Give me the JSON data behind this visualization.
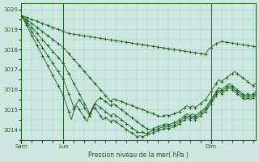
{
  "bg_color": "#cce8e0",
  "grid_color": "#aaccc4",
  "line_color": "#1a5c1a",
  "ylabel": "Pression niveau de la mer( hPa )",
  "ylim": [
    1013.5,
    1020.3
  ],
  "yticks": [
    1014,
    1015,
    1016,
    1017,
    1018,
    1019,
    1020
  ],
  "day_labels": [
    "Sam",
    "Lun",
    "Dim"
  ],
  "day_positions": [
    0,
    16,
    72
  ],
  "total_points": 90,
  "series": [
    [
      1019.7,
      1019.65,
      1019.6,
      1019.55,
      1019.5,
      1019.45,
      1019.4,
      1019.35,
      1019.3,
      1019.25,
      1019.2,
      1019.15,
      1019.1,
      1019.05,
      1019.0,
      1018.95,
      1018.9,
      1018.85,
      1018.8,
      1018.78,
      1018.76,
      1018.74,
      1018.72,
      1018.7,
      1018.68,
      1018.66,
      1018.64,
      1018.62,
      1018.6,
      1018.58,
      1018.56,
      1018.54,
      1018.52,
      1018.5,
      1018.48,
      1018.46,
      1018.44,
      1018.42,
      1018.4,
      1018.38,
      1018.36,
      1018.34,
      1018.32,
      1018.3,
      1018.28,
      1018.26,
      1018.24,
      1018.22,
      1018.2,
      1018.18,
      1018.16,
      1018.14,
      1018.12,
      1018.1,
      1018.08,
      1018.06,
      1018.04,
      1018.02,
      1018.0,
      1017.98,
      1017.96,
      1017.94,
      1017.92,
      1017.9,
      1017.88,
      1017.86,
      1017.84,
      1017.82,
      1017.8,
      1017.78,
      1017.76,
      1018.0,
      1018.1,
      1018.2,
      1018.3,
      1018.35,
      1018.4,
      1018.38,
      1018.36,
      1018.34,
      1018.32,
      1018.3,
      1018.28,
      1018.26,
      1018.24,
      1018.22,
      1018.2,
      1018.18,
      1018.16,
      1018.14
    ],
    [
      1019.7,
      1019.6,
      1019.5,
      1019.4,
      1019.3,
      1019.2,
      1019.1,
      1019.0,
      1018.9,
      1018.8,
      1018.7,
      1018.6,
      1018.5,
      1018.4,
      1018.3,
      1018.2,
      1018.1,
      1017.95,
      1017.8,
      1017.65,
      1017.5,
      1017.35,
      1017.2,
      1017.05,
      1016.9,
      1016.75,
      1016.6,
      1016.45,
      1016.3,
      1016.15,
      1016.0,
      1015.85,
      1015.7,
      1015.55,
      1015.4,
      1015.55,
      1015.5,
      1015.45,
      1015.4,
      1015.35,
      1015.3,
      1015.25,
      1015.2,
      1015.15,
      1015.1,
      1015.05,
      1015.0,
      1014.95,
      1014.9,
      1014.85,
      1014.8,
      1014.75,
      1014.7,
      1014.65,
      1014.7,
      1014.75,
      1014.7,
      1014.75,
      1014.8,
      1014.85,
      1014.9,
      1015.0,
      1015.1,
      1015.2,
      1015.1,
      1015.2,
      1015.1,
      1015.2,
      1015.3,
      1015.4,
      1015.5,
      1015.7,
      1015.9,
      1016.1,
      1016.3,
      1016.5,
      1016.4,
      1016.5,
      1016.6,
      1016.7,
      1016.8,
      1016.9,
      1016.8,
      1016.7,
      1016.6,
      1016.5,
      1016.4,
      1016.3,
      1016.2,
      1016.3
    ],
    [
      1019.7,
      1019.55,
      1019.4,
      1019.25,
      1019.1,
      1018.95,
      1018.8,
      1018.65,
      1018.5,
      1018.35,
      1018.2,
      1018.05,
      1017.9,
      1017.75,
      1017.6,
      1017.45,
      1017.3,
      1017.05,
      1016.8,
      1016.55,
      1016.3,
      1016.05,
      1015.8,
      1015.55,
      1015.3,
      1015.05,
      1014.8,
      1015.1,
      1015.3,
      1015.5,
      1015.6,
      1015.5,
      1015.4,
      1015.3,
      1015.2,
      1015.3,
      1015.2,
      1015.1,
      1015.0,
      1014.9,
      1014.8,
      1014.7,
      1014.6,
      1014.5,
      1014.4,
      1014.3,
      1014.2,
      1014.1,
      1014.05,
      1014.0,
      1014.05,
      1014.1,
      1014.15,
      1014.2,
      1014.25,
      1014.3,
      1014.25,
      1014.3,
      1014.35,
      1014.4,
      1014.5,
      1014.6,
      1014.7,
      1014.8,
      1014.7,
      1014.8,
      1014.7,
      1014.8,
      1014.9,
      1015.0,
      1015.1,
      1015.3,
      1015.5,
      1015.7,
      1015.9,
      1016.1,
      1016.0,
      1016.1,
      1016.2,
      1016.3,
      1016.2,
      1016.1,
      1016.0,
      1015.9,
      1015.8,
      1015.7,
      1015.8,
      1015.7,
      1015.8,
      1015.9
    ],
    [
      1019.7,
      1019.5,
      1019.3,
      1019.1,
      1018.9,
      1018.7,
      1018.5,
      1018.3,
      1018.1,
      1017.9,
      1017.7,
      1017.5,
      1017.3,
      1017.1,
      1016.9,
      1016.7,
      1016.5,
      1016.15,
      1015.8,
      1015.45,
      1015.1,
      1015.3,
      1015.5,
      1015.3,
      1015.1,
      1014.9,
      1014.7,
      1015.0,
      1015.3,
      1015.2,
      1015.1,
      1015.0,
      1014.9,
      1014.8,
      1014.7,
      1014.8,
      1014.7,
      1014.6,
      1014.5,
      1014.4,
      1014.3,
      1014.2,
      1014.1,
      1014.0,
      1013.9,
      1013.85,
      1013.9,
      1013.8,
      1013.85,
      1013.9,
      1013.95,
      1014.0,
      1014.05,
      1014.1,
      1014.15,
      1014.2,
      1014.15,
      1014.2,
      1014.25,
      1014.3,
      1014.4,
      1014.5,
      1014.6,
      1014.7,
      1014.6,
      1014.7,
      1014.6,
      1014.7,
      1014.8,
      1014.9,
      1015.0,
      1015.2,
      1015.4,
      1015.6,
      1015.8,
      1016.0,
      1015.9,
      1016.0,
      1016.1,
      1016.2,
      1016.1,
      1016.0,
      1015.9,
      1015.8,
      1015.7,
      1015.6,
      1015.7,
      1015.6,
      1015.7,
      1015.8
    ],
    [
      1019.7,
      1019.45,
      1019.2,
      1018.95,
      1018.7,
      1018.45,
      1018.2,
      1017.95,
      1017.7,
      1017.45,
      1017.2,
      1016.95,
      1016.7,
      1016.45,
      1016.2,
      1015.95,
      1015.7,
      1015.3,
      1014.9,
      1014.5,
      1015.0,
      1015.2,
      1015.0,
      1014.8,
      1014.6,
      1014.4,
      1014.8,
      1015.0,
      1015.1,
      1014.9,
      1014.7,
      1014.5,
      1014.6,
      1014.5,
      1014.4,
      1014.5,
      1014.4,
      1014.3,
      1014.2,
      1014.1,
      1014.0,
      1013.9,
      1013.85,
      1013.75,
      1013.65,
      1013.7,
      1013.65,
      1013.7,
      1013.75,
      1013.8,
      1013.85,
      1013.9,
      1013.95,
      1014.0,
      1014.05,
      1014.1,
      1014.05,
      1014.1,
      1014.15,
      1014.2,
      1014.3,
      1014.4,
      1014.5,
      1014.6,
      1014.5,
      1014.6,
      1014.5,
      1014.6,
      1014.7,
      1014.8,
      1014.9,
      1015.1,
      1015.3,
      1015.5,
      1015.7,
      1015.9,
      1015.8,
      1015.9,
      1016.0,
      1016.1,
      1016.0,
      1015.9,
      1015.8,
      1015.7,
      1015.6,
      1015.5,
      1015.6,
      1015.5,
      1015.6,
      1015.7
    ]
  ]
}
